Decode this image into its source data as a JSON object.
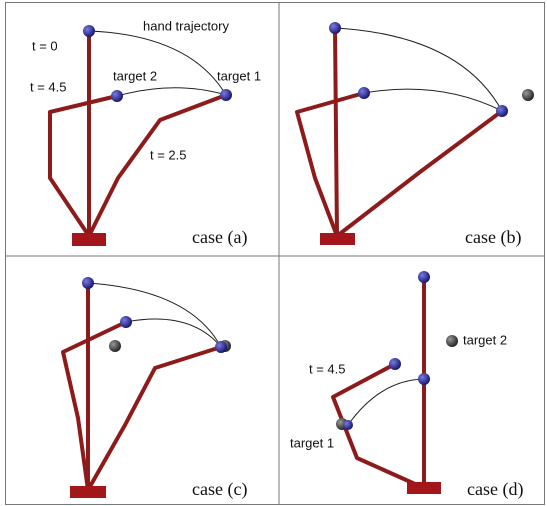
{
  "panels": [
    {
      "caption": "case (a)",
      "labels": [
        "t = 0",
        "hand trajectory",
        "t = 4.5",
        "target 2",
        "target 1",
        "t = 2.5"
      ]
    },
    {
      "caption": "case (b)"
    },
    {
      "caption": "case (c)"
    },
    {
      "caption": "case (d)",
      "labels": [
        "t = 4.5",
        "target 2",
        "target 1"
      ]
    }
  ]
}
